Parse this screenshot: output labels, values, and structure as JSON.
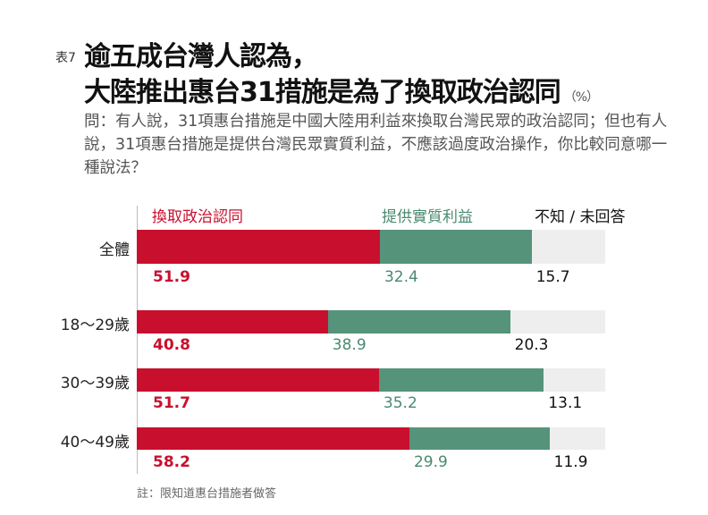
{
  "header": {
    "tag": "表7",
    "title_line1": "逾五成台灣人認為，",
    "title_line2": "大陸推出惠台31措施是為了換取政治認同",
    "unit": "（%）"
  },
  "question": "問：有人說，31項惠台措施是中國大陸用利益來換取台灣民眾的政治認同；但也有人說，31項惠台措施是提供台灣民眾實質利益，不應該過度政治操作，你比較同意哪一種說法？",
  "note": "註：限知道惠台措施者做答",
  "chart_data": {
    "type": "bar",
    "orientation": "horizontal",
    "stacked": true,
    "xlim": [
      0,
      100
    ],
    "categories": [
      "全體",
      "18～29歲",
      "30～39歲",
      "40～49歲"
    ],
    "series": [
      {
        "name": "換取政治認同",
        "color": "#c8102e",
        "values": [
          51.9,
          40.8,
          51.7,
          58.2
        ]
      },
      {
        "name": "提供實質利益",
        "color": "#55937b",
        "values": [
          32.4,
          38.9,
          35.2,
          29.9
        ]
      },
      {
        "name": "不知 / 未回答",
        "color": "#eeeeee",
        "values": [
          15.7,
          20.3,
          13.1,
          11.9
        ]
      }
    ],
    "label_colors": [
      "#c8102e",
      "#4a8a70",
      "#111111"
    ],
    "legend": "top"
  }
}
